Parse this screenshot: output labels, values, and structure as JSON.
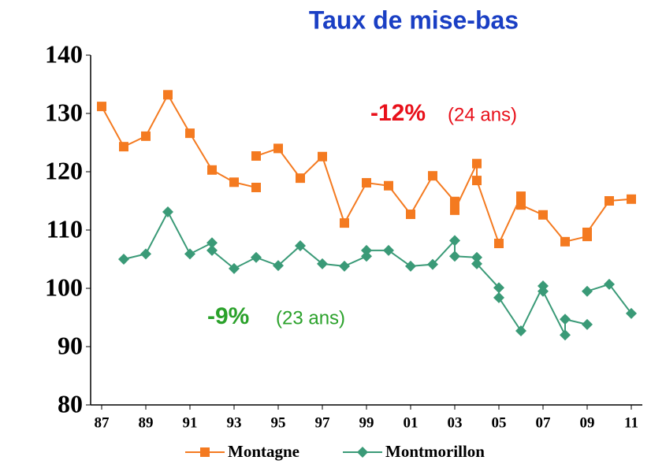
{
  "chart_data": {
    "type": "line",
    "title": "Taux de mise-bas",
    "xlim": [
      1986.5,
      2011.5
    ],
    "xticks": [
      {
        "value": 1987,
        "label": "87"
      },
      {
        "value": 1989,
        "label": "89"
      },
      {
        "value": 1991,
        "label": "91"
      },
      {
        "value": 1993,
        "label": "93"
      },
      {
        "value": 1995,
        "label": "95"
      },
      {
        "value": 1997,
        "label": "97"
      },
      {
        "value": 1999,
        "label": "99"
      },
      {
        "value": 2001,
        "label": "01"
      },
      {
        "value": 2003,
        "label": "03"
      },
      {
        "value": 2005,
        "label": "05"
      },
      {
        "value": 2007,
        "label": "07"
      },
      {
        "value": 2009,
        "label": "09"
      },
      {
        "value": 2011,
        "label": "11"
      }
    ],
    "ylim": [
      80,
      140
    ],
    "yticks": [
      80,
      90,
      100,
      110,
      120,
      130,
      140
    ],
    "series": [
      {
        "name": "Montagne",
        "color": "#f47a20",
        "marker": "square",
        "x": [
          1987,
          1988,
          1989,
          1990,
          1991,
          1992,
          1993,
          1994,
          null,
          1994,
          1995,
          1996,
          1997,
          1998,
          1999,
          2000,
          2001,
          2002,
          2003,
          2003,
          2004,
          2004,
          2005,
          2006,
          2006,
          2007,
          2008,
          2009,
          2009,
          2010,
          2011
        ],
        "values": [
          131.2,
          124.3,
          126.1,
          133.2,
          126.6,
          120.3,
          118.2,
          117.3,
          null,
          122.7,
          124.0,
          118.9,
          122.6,
          111.2,
          118.1,
          117.6,
          112.7,
          119.3,
          114.9,
          113.4,
          121.4,
          118.5,
          107.7,
          115.8,
          114.3,
          112.6,
          108.0,
          108.9,
          109.6,
          115.0,
          115.3
        ]
      },
      {
        "name": "Montmorillon",
        "color": "#3a9a77",
        "marker": "diamond",
        "x": [
          1988,
          1989,
          1990,
          1991,
          1992,
          1992,
          1993,
          1994,
          1995,
          1996,
          1997,
          1998,
          1999,
          1999,
          2000,
          2001,
          2002,
          2003,
          2003,
          2004,
          2004,
          2005,
          2005,
          2006,
          2007,
          2007,
          2008,
          2008,
          2009,
          null,
          2009,
          2010,
          2011
        ],
        "values": [
          105.0,
          105.9,
          113.1,
          105.9,
          107.8,
          106.5,
          103.4,
          105.3,
          103.9,
          107.3,
          104.2,
          103.8,
          105.5,
          106.5,
          106.5,
          103.8,
          104.1,
          108.2,
          105.5,
          105.3,
          104.2,
          100.1,
          98.4,
          92.7,
          100.4,
          99.5,
          92.0,
          94.7,
          93.8,
          null,
          99.5,
          100.7,
          95.7
        ]
      }
    ],
    "annotations": [
      {
        "text": "-12%",
        "color": "#e8101a"
      },
      {
        "text": "(24 ans)",
        "color": "#e8101a"
      },
      {
        "text": "-9%",
        "color": "#2aa12a"
      },
      {
        "text": "(23 ans)",
        "color": "#2aa12a"
      }
    ]
  }
}
